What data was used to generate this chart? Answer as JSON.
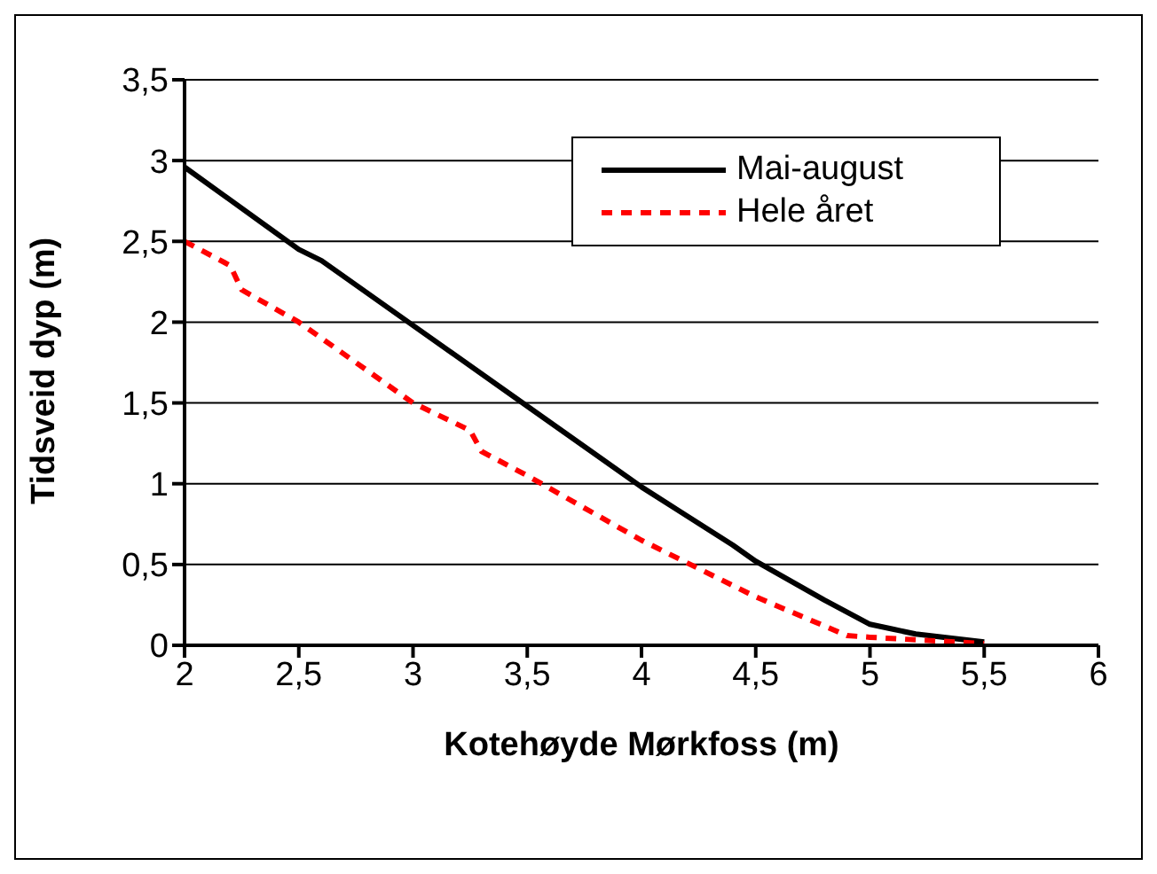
{
  "chart_data": {
    "type": "line",
    "xlabel": "Kotehøyde Mørkfoss (m)",
    "ylabel": "Tidsveid dyp (m)",
    "xlim": [
      2,
      6
    ],
    "xticks": [
      2,
      {
        "value": 2.5,
        "label": "2,5"
      },
      3,
      {
        "value": 3.5,
        "label": "3,5"
      },
      4,
      {
        "value": 4.5,
        "label": "4,5"
      },
      5,
      {
        "value": 5.5,
        "label": "5,5"
      },
      6
    ],
    "ylim": [
      0,
      3.5
    ],
    "yticks": [
      0,
      {
        "value": 0.5,
        "label": "0,5"
      },
      1,
      {
        "value": 1.5,
        "label": "1,5"
      },
      2,
      {
        "value": 2.5,
        "label": "2,5"
      },
      3,
      {
        "value": 3.5,
        "label": "3,5"
      }
    ],
    "grid": "y",
    "legend": "top right",
    "marker": "none",
    "series": [
      {
        "name": "Mai-august",
        "color": "#000000",
        "line_style": "solid",
        "x": [
          2,
          2.5,
          2.6,
          3,
          3.5,
          4,
          4.4,
          4.5,
          4.8,
          5,
          5.1,
          5.2,
          5.5
        ],
        "values": [
          2.96,
          2.45,
          2.38,
          1.98,
          1.48,
          0.98,
          0.62,
          0.52,
          0.28,
          0.13,
          0.1,
          0.07,
          0.02
        ]
      },
      {
        "name": "Hele året",
        "color": "#ff0000",
        "line_style": "dashed",
        "x": [
          2,
          2.2,
          2.25,
          2.5,
          3,
          3.25,
          3.3,
          3.5,
          4,
          4.5,
          4.8,
          4.9,
          5,
          5.5
        ],
        "values": [
          2.5,
          2.35,
          2.2,
          2.0,
          1.5,
          1.33,
          1.2,
          1.05,
          0.65,
          0.3,
          0.12,
          0.06,
          0.05,
          0.01
        ]
      }
    ]
  }
}
